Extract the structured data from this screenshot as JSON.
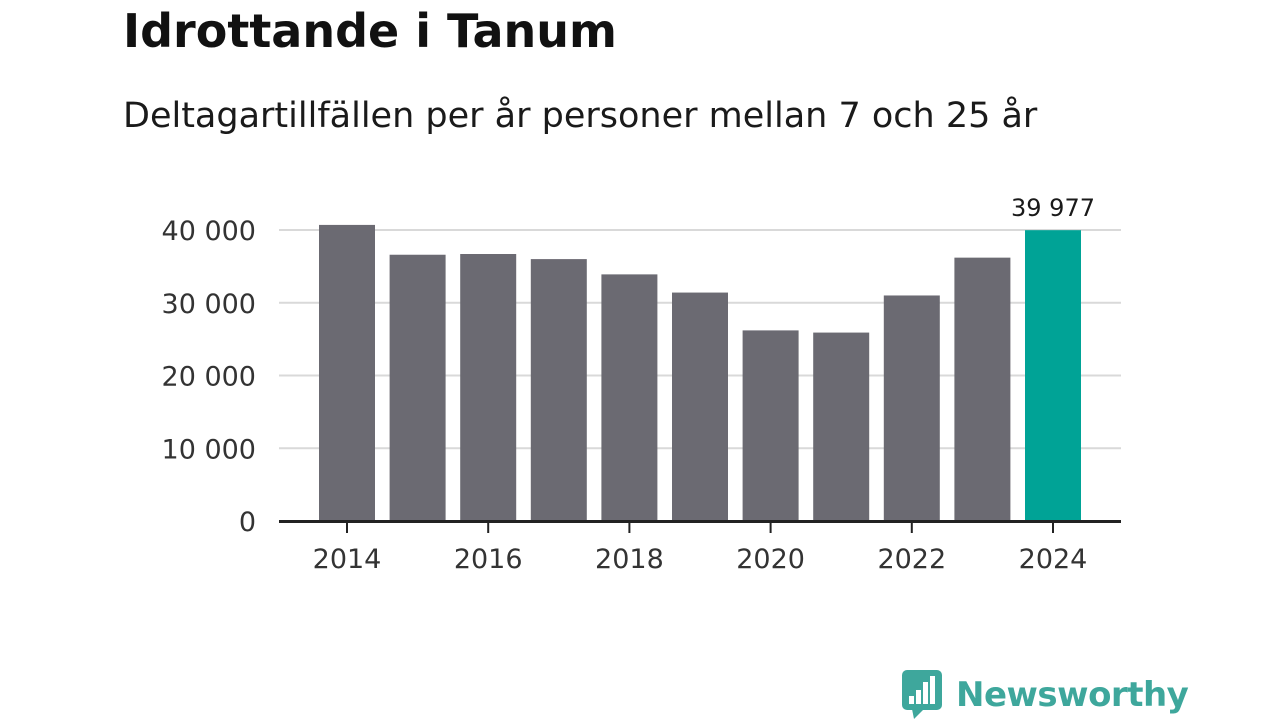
{
  "header": {
    "title": "Idrottande i Tanum",
    "subtitle": "Deltagartillfällen per år personer mellan 7 och 25 år"
  },
  "chart_data": {
    "type": "bar",
    "title": "Idrottande i Tanum",
    "subtitle": "Deltagartillfällen per år personer mellan 7 och 25 år",
    "xlabel": "",
    "ylabel": "",
    "categories": [
      2014,
      2015,
      2016,
      2017,
      2018,
      2019,
      2020,
      2021,
      2022,
      2023,
      2024
    ],
    "values": [
      40700,
      36600,
      36700,
      36000,
      33900,
      31400,
      26200,
      25900,
      31000,
      36200,
      39977
    ],
    "highlight_index": 10,
    "highlight_label": "39 977",
    "ylim": [
      0,
      40000
    ],
    "y_ticks": [
      0,
      10000,
      20000,
      30000,
      40000
    ],
    "y_tick_labels": [
      "0",
      "10 000",
      "20 000",
      "30 000",
      "40 000"
    ],
    "x_tick_labels": [
      "2014",
      "2016",
      "2018",
      "2020",
      "2022",
      "2024"
    ],
    "grid": true,
    "legend": "none",
    "colors": {
      "bar": "#6b6a72",
      "highlight": "#00a396",
      "axis": "#222222",
      "grid": "#d9d9d9",
      "tick_text": "#333333"
    }
  },
  "branding": {
    "logo_text": "Newsworthy",
    "logo_color": "#3ea79c",
    "logo_icon": "newsworthy-chart-bubble-icon"
  }
}
